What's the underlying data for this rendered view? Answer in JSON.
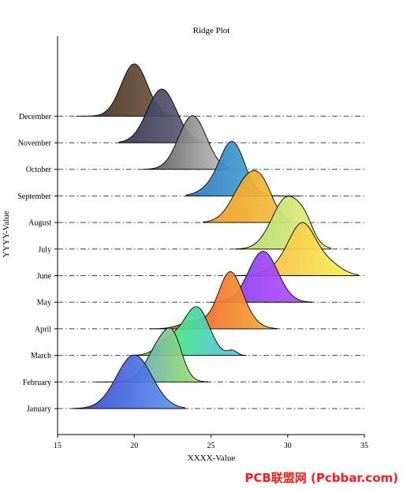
{
  "chart_data": {
    "type": "ridge",
    "title": "Ridge Plot",
    "xlabel": "XXXX-Value",
    "ylabel": "YYYY-Value",
    "xlim": [
      15,
      35
    ],
    "xticks": [
      15,
      20,
      25,
      30,
      35
    ],
    "categories": [
      "January",
      "February",
      "March",
      "April",
      "May",
      "June",
      "July",
      "August",
      "September",
      "October",
      "November",
      "December"
    ],
    "series": [
      {
        "name": "January",
        "range": [
          16.0,
          23.3
        ],
        "peaks": [
          {
            "x": 20.0,
            "h": 2.0,
            "w": 1.15
          }
        ],
        "colors": [
          "#3a3ec8",
          "#5d9bf5"
        ]
      },
      {
        "name": "February",
        "range": [
          17.5,
          24.8
        ],
        "peaks": [
          {
            "x": 21.8,
            "h": 1.5,
            "w": 0.9
          },
          {
            "x": 22.6,
            "h": 0.85,
            "w": 0.55
          }
        ],
        "colors": [
          "#4f7df0",
          "#9ef05a"
        ]
      },
      {
        "name": "March",
        "range": [
          20.0,
          27.3
        ],
        "peaks": [
          {
            "x": 22.4,
            "h": 0.6,
            "w": 0.8
          },
          {
            "x": 24.1,
            "h": 1.75,
            "w": 0.8
          },
          {
            "x": 26.4,
            "h": 0.17,
            "w": 0.3
          }
        ],
        "colors": [
          "#38ff3a",
          "#5cb8f8"
        ]
      },
      {
        "name": "April",
        "range": [
          21.0,
          29.3
        ],
        "peaks": [
          {
            "x": 24.0,
            "h": 0.3,
            "w": 0.9
          },
          {
            "x": 26.2,
            "h": 1.95,
            "w": 0.75
          },
          {
            "x": 27.2,
            "h": 0.35,
            "w": 0.8
          }
        ],
        "colors": [
          "#f03a20",
          "#f5b03a"
        ]
      },
      {
        "name": "May",
        "range": [
          25.0,
          31.6
        ],
        "peaks": [
          {
            "x": 28.4,
            "h": 1.9,
            "w": 0.95
          }
        ],
        "colors": [
          "#7a3df0",
          "#c050f8"
        ]
      },
      {
        "name": "June",
        "range": [
          26.3,
          34.6
        ],
        "peaks": [
          {
            "x": 30.0,
            "h": 0.5,
            "w": 1.0
          },
          {
            "x": 31.0,
            "h": 1.55,
            "w": 0.8
          },
          {
            "x": 32.5,
            "h": 0.5,
            "w": 0.9
          }
        ],
        "colors": [
          "#f8a845",
          "#f8f550"
        ]
      },
      {
        "name": "July",
        "range": [
          26.6,
          32.8
        ],
        "peaks": [
          {
            "x": 30.0,
            "h": 1.95,
            "w": 1.0
          },
          {
            "x": 31.2,
            "h": 0.4,
            "w": 0.5
          }
        ],
        "colors": [
          "#a8d870",
          "#f0f07a"
        ]
      },
      {
        "name": "August",
        "range": [
          24.5,
          30.0
        ],
        "peaks": [
          {
            "x": 27.5,
            "h": 1.7,
            "w": 1.0
          },
          {
            "x": 28.5,
            "h": 0.55,
            "w": 0.65
          }
        ],
        "colors": [
          "#f39a22",
          "#f0c040"
        ]
      },
      {
        "name": "September",
        "range": [
          23.4,
          30.8
        ],
        "peaks": [
          {
            "x": 26.4,
            "h": 1.98,
            "w": 0.8
          },
          {
            "x": 25.0,
            "h": 0.25,
            "w": 0.8
          }
        ],
        "colors": [
          "#2c74c0",
          "#58c0d8"
        ]
      },
      {
        "name": "October",
        "range": [
          20.6,
          26.2
        ],
        "peaks": [
          {
            "x": 23.8,
            "h": 2.0,
            "w": 0.9
          }
        ],
        "colors": [
          "#505050",
          "#c4c4c4"
        ]
      },
      {
        "name": "November",
        "range": [
          19.0,
          25.0
        ],
        "peaks": [
          {
            "x": 21.8,
            "h": 2.0,
            "w": 0.95
          }
        ],
        "colors": [
          "#343450",
          "#6a6a88"
        ]
      },
      {
        "name": "December",
        "range": [
          16.2,
          23.0
        ],
        "peaks": [
          {
            "x": 20.0,
            "h": 1.95,
            "w": 0.85
          }
        ],
        "colors": [
          "#3a2a1a",
          "#7a5e44"
        ]
      }
    ],
    "grid": "dash-dot lines at each category baseline",
    "legend": "none"
  },
  "watermark": "PCB联盟网 (Pcbbar.com)"
}
